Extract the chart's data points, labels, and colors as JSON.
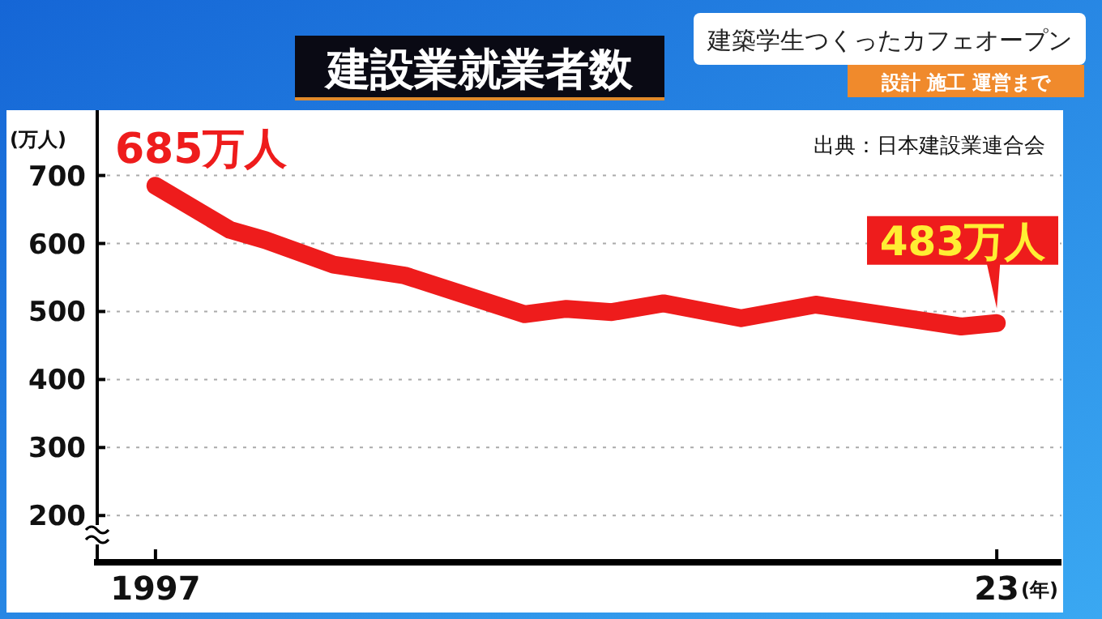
{
  "chart_data": {
    "type": "line",
    "title": "建設業就業者数",
    "ylabel": "(万人)",
    "xlabel": "(年)",
    "annotations": [
      {
        "text": "685万人",
        "x": 1997,
        "y": 685
      },
      {
        "text": "483万人",
        "x": 2023,
        "y": 483
      },
      "出典：日本建設業連合会",
      "建築学生つくったカフェオープン",
      "設計 施工 運営まで"
    ],
    "x": [
      1997,
      1999.3,
      2000.4,
      2002.5,
      2004.7,
      2008.4,
      2009.7,
      2011.1,
      2012.7,
      2015.1,
      2017.4,
      2021.9,
      2023
    ],
    "series": [
      {
        "color": "#ee1c1c",
        "values": [
          685,
          620,
          605,
          569,
          553,
          496,
          504,
          499,
          512,
          490,
          510,
          478,
          483
        ]
      }
    ],
    "xlim": [
      1995.2,
      2025
    ],
    "ylim": [
      136,
      796
    ],
    "xticks": [
      {
        "value": 1997,
        "label": "1997"
      },
      {
        "value": 2023,
        "label": "23"
      }
    ],
    "yticks": [
      200,
      300,
      400,
      500,
      600,
      700
    ],
    "grid": "y",
    "line_style": "solid"
  }
}
